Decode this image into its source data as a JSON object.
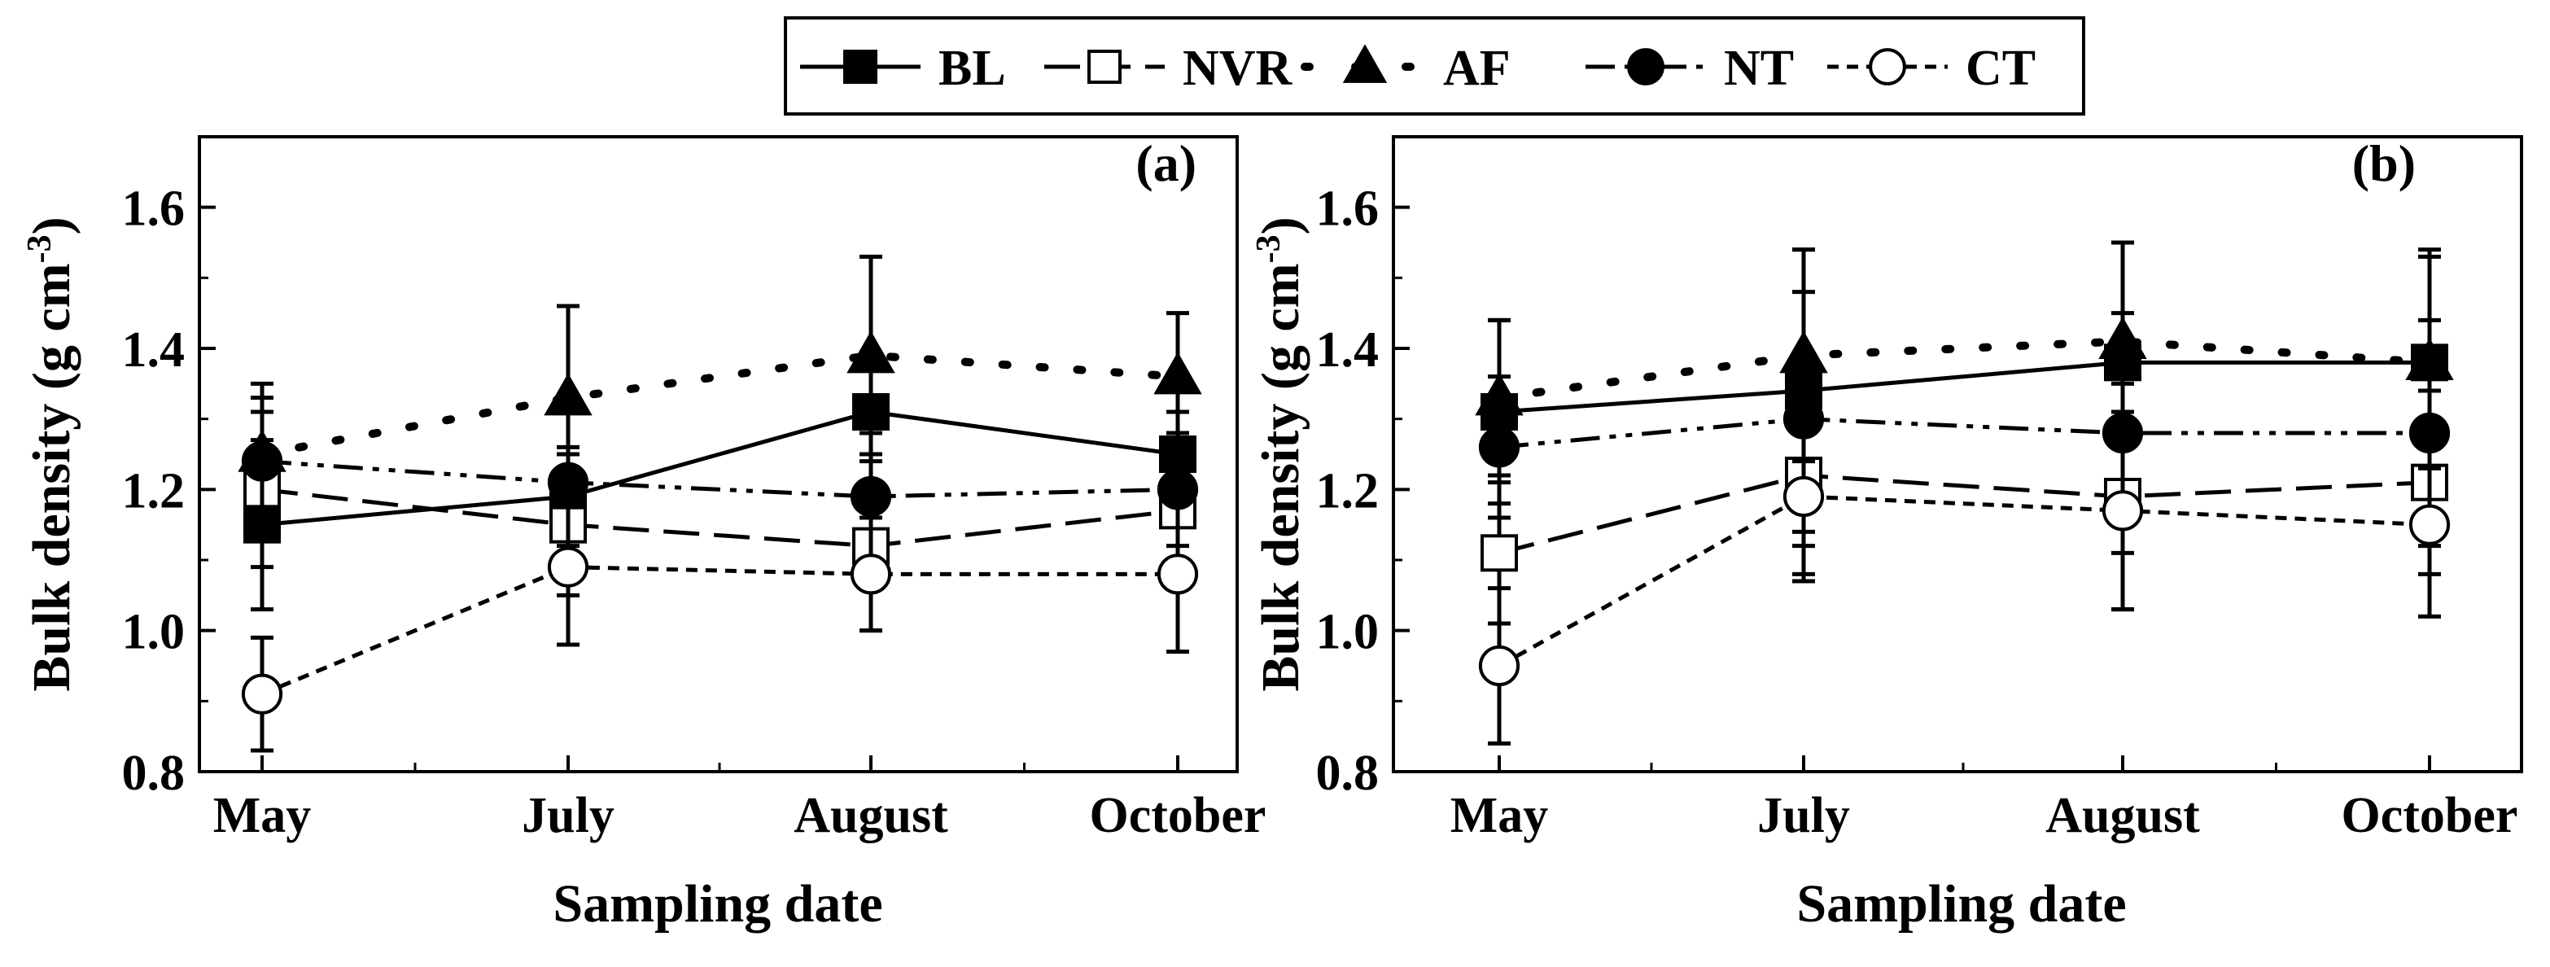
{
  "legend": [
    {
      "series": "BL",
      "label": "BL"
    },
    {
      "series": "NVR",
      "label": "NVR"
    },
    {
      "series": "AF",
      "label": "AF"
    },
    {
      "series": "NT",
      "label": "NT"
    },
    {
      "series": "CT",
      "label": "CT"
    }
  ],
  "chart_data": [
    {
      "type": "line",
      "panel_label": "(a)",
      "title": "",
      "xlabel": "Sampling date",
      "ylabel": "Bulk density (g cm",
      "ylabel_sup": "-3",
      "ylabel_close": ")",
      "categories": [
        "May",
        "July",
        "August",
        "October"
      ],
      "ylim": [
        0.8,
        1.7
      ],
      "yticks": [
        0.8,
        1.0,
        1.2,
        1.4,
        1.6
      ],
      "ytick_labels": [
        "0.8",
        "1.0",
        "1.2",
        "1.4",
        "1.6"
      ],
      "series": [
        {
          "name": "BL",
          "marker": "square-filled",
          "line": "solid",
          "values": [
            1.15,
            1.19,
            1.31,
            1.25
          ],
          "errors": [
            0.12,
            0.07,
            0.06,
            0.06
          ]
        },
        {
          "name": "NVR",
          "marker": "square-open",
          "line": "dashed",
          "values": [
            1.2,
            1.15,
            1.12,
            1.17
          ],
          "errors": [
            0.11,
            0.1,
            0.12,
            0.1
          ]
        },
        {
          "name": "AF",
          "marker": "triangle-filled",
          "line": "dotted",
          "values": [
            1.25,
            1.33,
            1.39,
            1.36
          ],
          "errors": [
            0.1,
            0.13,
            0.14,
            0.09
          ]
        },
        {
          "name": "NT",
          "marker": "circle-filled",
          "line": "dashdotdot",
          "values": [
            1.24,
            1.21,
            1.19,
            1.2
          ],
          "errors": [
            0.09,
            0.1,
            0.09,
            0.08
          ]
        },
        {
          "name": "CT",
          "marker": "circle-open",
          "line": "shortdash",
          "values": [
            0.91,
            1.09,
            1.08,
            1.08
          ],
          "errors": [
            0.08,
            0.11,
            0.08,
            0.11
          ]
        }
      ]
    },
    {
      "type": "line",
      "panel_label": "(b)",
      "title": "",
      "xlabel": "Sampling date",
      "ylabel": "Bulk density (g cm",
      "ylabel_sup": "-3",
      "ylabel_close": ")",
      "categories": [
        "May",
        "July",
        "August",
        "October"
      ],
      "ylim": [
        0.8,
        1.7
      ],
      "yticks": [
        0.8,
        1.0,
        1.2,
        1.4,
        1.6
      ],
      "ytick_labels": [
        "0.8",
        "1.0",
        "1.2",
        "1.4",
        "1.6"
      ],
      "series": [
        {
          "name": "BL",
          "marker": "square-filled",
          "line": "solid",
          "values": [
            1.31,
            1.34,
            1.38,
            1.38
          ],
          "errors": [
            0.13,
            0.2,
            0.17,
            0.16
          ]
        },
        {
          "name": "NVR",
          "marker": "square-open",
          "line": "dashed",
          "values": [
            1.11,
            1.22,
            1.19,
            1.21
          ],
          "errors": [
            0.1,
            0.14,
            0.16,
            0.13
          ]
        },
        {
          "name": "AF",
          "marker": "triangle-filled",
          "line": "dotted",
          "values": [
            1.33,
            1.39,
            1.41,
            1.38
          ],
          "errors": [
            0.11,
            0.15,
            0.14,
            0.15
          ]
        },
        {
          "name": "NT",
          "marker": "circle-filled",
          "line": "dashdotdot",
          "values": [
            1.26,
            1.3,
            1.28,
            1.28
          ],
          "errors": [
            0.1,
            0.18,
            0.17,
            0.16
          ]
        },
        {
          "name": "CT",
          "marker": "circle-open",
          "line": "shortdash",
          "values": [
            0.95,
            1.19,
            1.17,
            1.15
          ],
          "errors": [
            0.11,
            0.12,
            0.14,
            0.13
          ]
        }
      ]
    }
  ]
}
